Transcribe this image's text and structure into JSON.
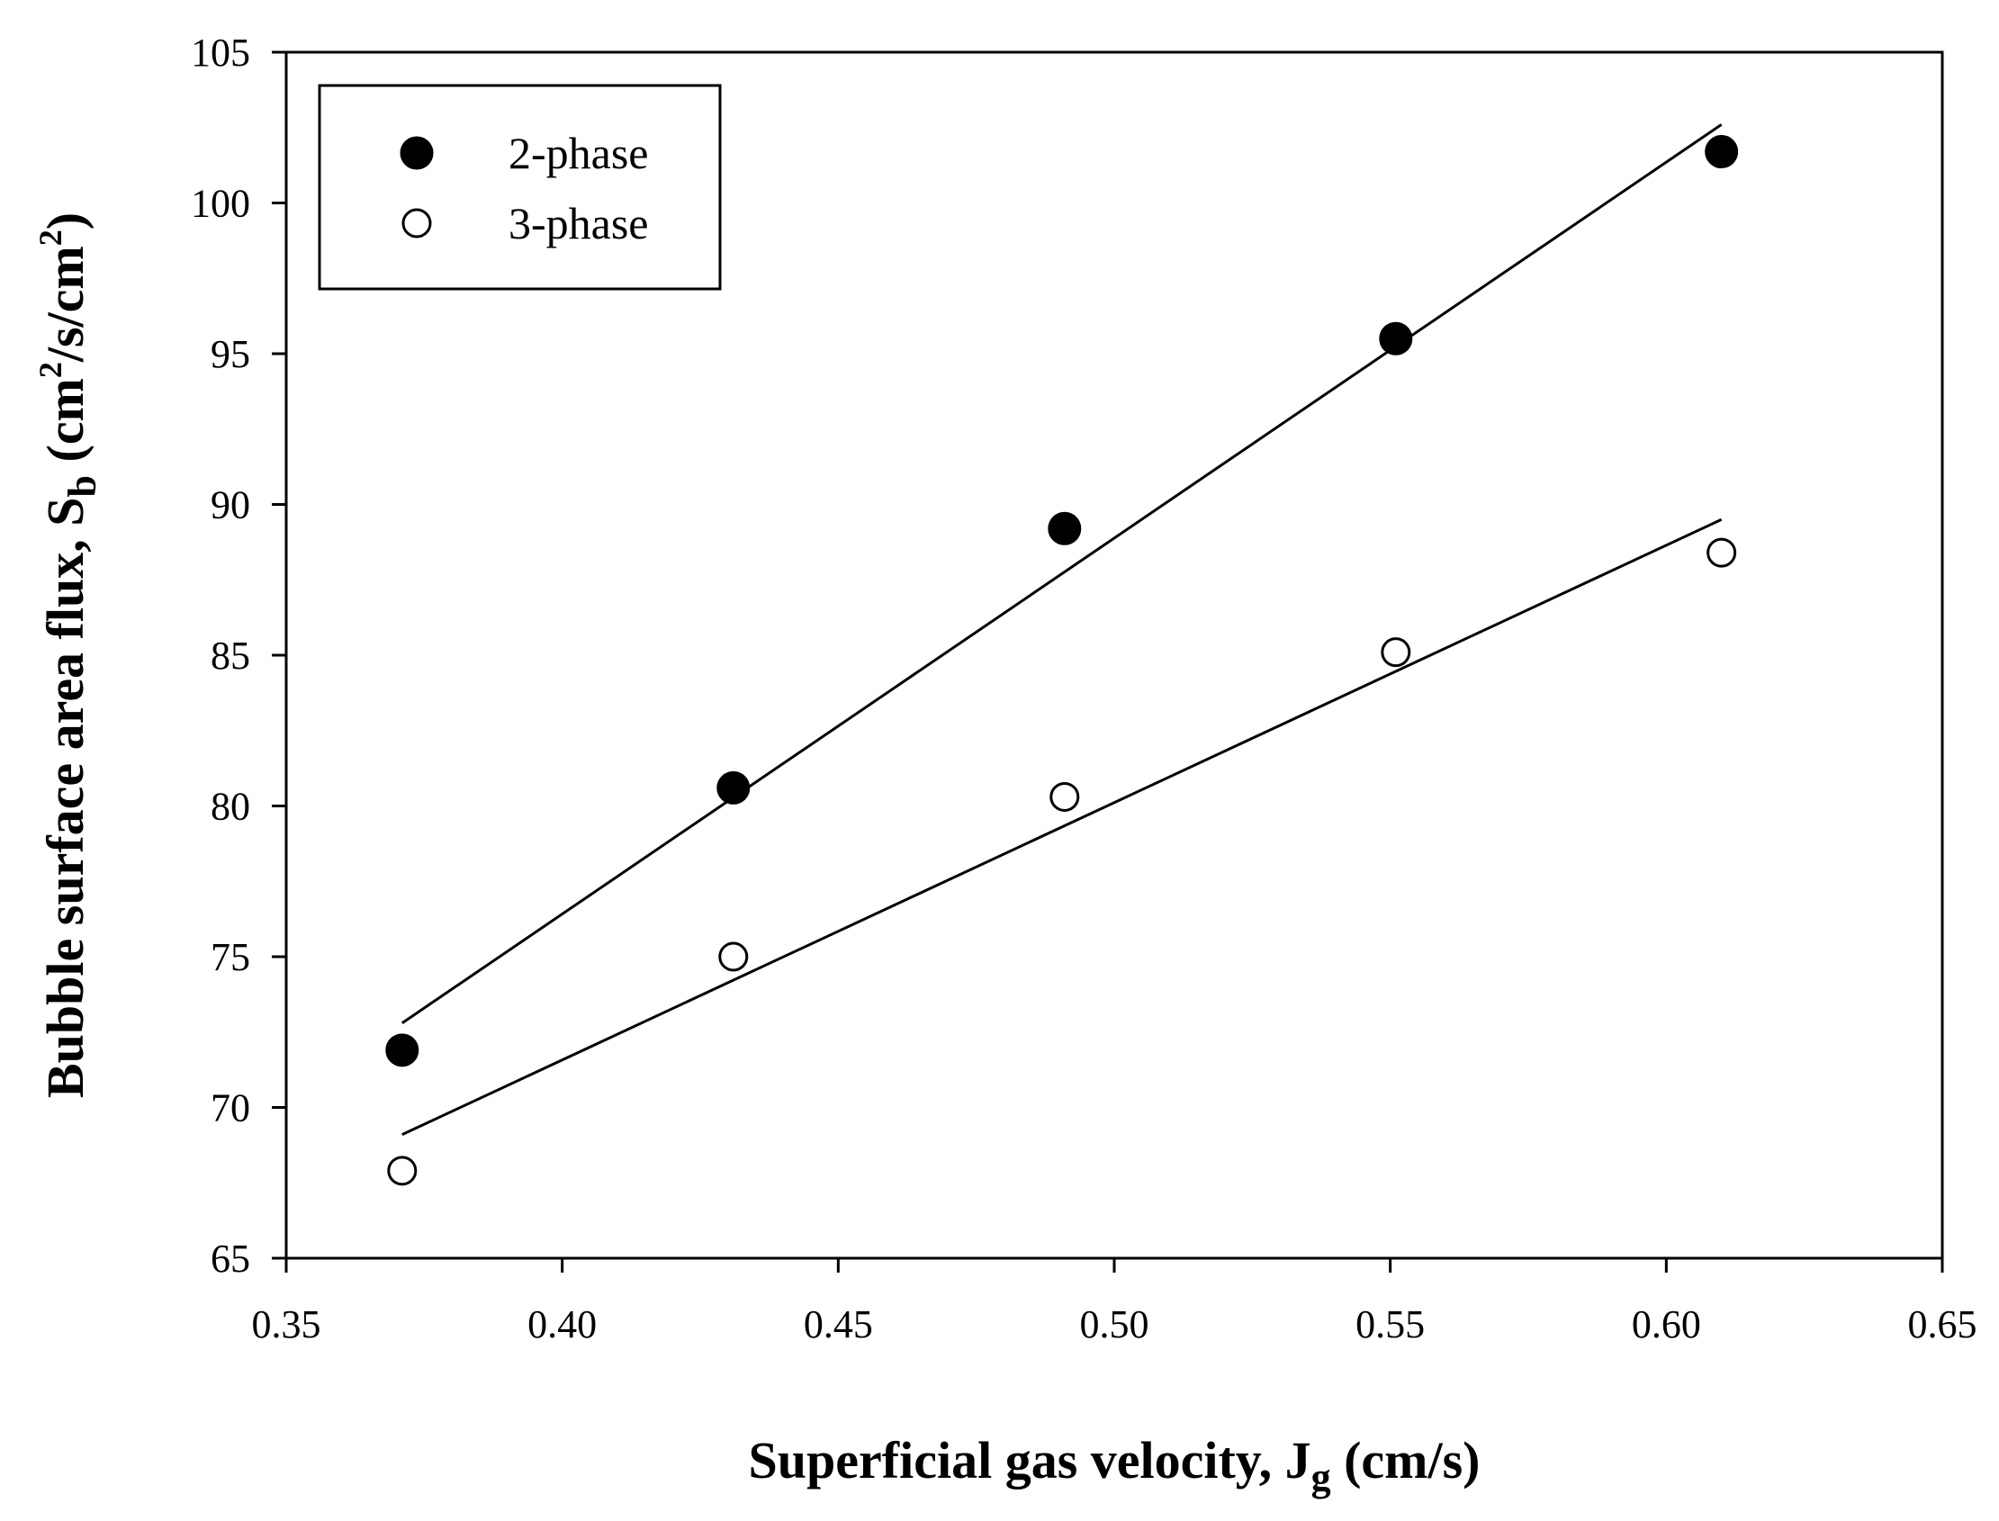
{
  "chart_data": {
    "type": "scatter",
    "title": "",
    "xlabel": {
      "prefix": "Superficial gas velocity, J",
      "sub": "g",
      "suffix": " (cm/s)"
    },
    "ylabel": {
      "prefix": "Bubble surface area flux, S",
      "sub": "b",
      "unit_open": " (cm",
      "sup1": "2",
      "unit_mid": "/s/cm",
      "sup2": "2",
      "unit_close": ")"
    },
    "xlim": [
      0.35,
      0.65
    ],
    "ylim": [
      65,
      105
    ],
    "x_ticks": [
      {
        "value": 0.35,
        "label": "0.35"
      },
      {
        "value": 0.4,
        "label": "0.40"
      },
      {
        "value": 0.45,
        "label": "0.45"
      },
      {
        "value": 0.5,
        "label": "0.50"
      },
      {
        "value": 0.55,
        "label": "0.55"
      },
      {
        "value": 0.6,
        "label": "0.60"
      },
      {
        "value": 0.65,
        "label": "0.65"
      }
    ],
    "y_ticks": [
      {
        "value": 65,
        "label": "65"
      },
      {
        "value": 70,
        "label": "70"
      },
      {
        "value": 75,
        "label": "75"
      },
      {
        "value": 80,
        "label": "80"
      },
      {
        "value": 85,
        "label": "85"
      },
      {
        "value": 90,
        "label": "90"
      },
      {
        "value": 95,
        "label": "95"
      },
      {
        "value": 100,
        "label": "100"
      },
      {
        "value": 105,
        "label": "105"
      }
    ],
    "grid": false,
    "legend": "top-left",
    "series": [
      {
        "name": "2-phase",
        "marker": "filled-circle",
        "x": [
          0.371,
          0.431,
          0.491,
          0.551,
          0.61
        ],
        "y": [
          71.9,
          80.6,
          89.2,
          95.5,
          101.7
        ],
        "fit_line": {
          "x": [
            0.371,
            0.61
          ],
          "y": [
            72.8,
            102.6
          ]
        }
      },
      {
        "name": "3-phase",
        "marker": "open-circle",
        "x": [
          0.371,
          0.431,
          0.491,
          0.551,
          0.61
        ],
        "y": [
          67.9,
          75.0,
          80.3,
          85.1,
          88.4
        ],
        "fit_line": {
          "x": [
            0.371,
            0.61
          ],
          "y": [
            69.1,
            89.5
          ]
        }
      }
    ]
  }
}
